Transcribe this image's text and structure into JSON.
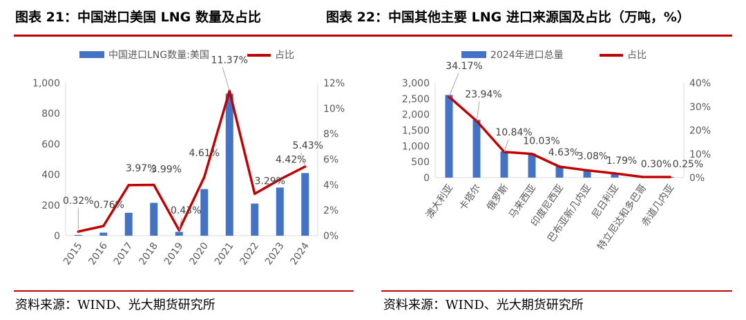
{
  "left": {
    "title": "图表 21：中国进口美国 LNG 数量及占比",
    "source": "资料来源：WIND、光大期货研究所"
  },
  "right": {
    "title": "图表 22：中国其他主要 LNG 进口来源国及占比（万吨，%）",
    "source": "资料来源：WIND、光大期货研究所"
  },
  "colors": {
    "bar": "#4472c4",
    "line": "#c00000",
    "rule": "#c00000",
    "axis": "#d9d9d9",
    "text": "#595959"
  },
  "chart_data": [
    {
      "type": "bar",
      "title": "中国进口美国 LNG 数量及占比",
      "categories": [
        "2015",
        "2016",
        "2017",
        "2018",
        "2019",
        "2020",
        "2021",
        "2022",
        "2023",
        "2024"
      ],
      "series": [
        {
          "name": "中国进口LNG数量:美国",
          "type": "bar",
          "axis": "left",
          "values": [
            5,
            20,
            150,
            215,
            25,
            305,
            930,
            210,
            315,
            410
          ]
        },
        {
          "name": "占比",
          "type": "line",
          "axis": "right",
          "unit": "%",
          "values": [
            0.32,
            0.76,
            3.97,
            3.99,
            0.43,
            4.61,
            11.37,
            3.29,
            4.42,
            5.43
          ],
          "labels": [
            "0.32%",
            "0.76%",
            "3.97%",
            "3.99%",
            "0.43%",
            "4.61%",
            "11.37%",
            "3.29%",
            "4.42%",
            "5.43%"
          ]
        }
      ],
      "yLeft": {
        "min": 0,
        "max": 1000,
        "ticks": [
          0,
          200,
          400,
          600,
          800,
          1000
        ],
        "tickLabels": [
          "0",
          "200",
          "400",
          "600",
          "800",
          "1,000"
        ]
      },
      "yRight": {
        "min": 0,
        "max": 12,
        "ticks": [
          0,
          2,
          4,
          6,
          8,
          10,
          12
        ],
        "tickLabels": [
          "0%",
          "2%",
          "4%",
          "6%",
          "8%",
          "10%",
          "12%"
        ]
      },
      "legend": [
        "中国进口LNG数量:美国",
        "占比"
      ]
    },
    {
      "type": "bar",
      "title": "中国其他主要 LNG 进口来源国及占比（万吨，%）",
      "categories": [
        "澳大利亚",
        "卡塔尔",
        "俄罗斯",
        "马来西亚",
        "印度尼西亚",
        "巴布亚新几内亚",
        "尼日利亚",
        "特立尼达和多巴哥",
        "赤道几内亚"
      ],
      "series": [
        {
          "name": "2024年进口总量",
          "type": "bar",
          "axis": "left",
          "values": [
            2620,
            1830,
            830,
            770,
            360,
            240,
            140,
            25,
            20
          ]
        },
        {
          "name": "占比",
          "type": "line",
          "axis": "right",
          "unit": "%",
          "values": [
            34.17,
            23.94,
            10.84,
            10.03,
            4.63,
            3.08,
            1.79,
            0.3,
            0.25
          ],
          "labels": [
            "34.17%",
            "23.94%",
            "10.84%",
            "10.03%",
            "4.63%",
            "3.08%",
            "1.79%",
            "0.30%",
            "0.25%"
          ]
        }
      ],
      "yLeft": {
        "min": 0,
        "max": 3000,
        "ticks": [
          0,
          500,
          1000,
          1500,
          2000,
          2500,
          3000
        ],
        "tickLabels": [
          "0",
          "500",
          "1,000",
          "1,500",
          "2,000",
          "2,500",
          "3,000"
        ]
      },
      "yRight": {
        "min": 0,
        "max": 40,
        "ticks": [
          0,
          10,
          20,
          30,
          40
        ],
        "tickLabels": [
          "0%",
          "10%",
          "20%",
          "30%",
          "40%"
        ]
      },
      "legend": [
        "2024年进口总量",
        "占比"
      ]
    }
  ]
}
